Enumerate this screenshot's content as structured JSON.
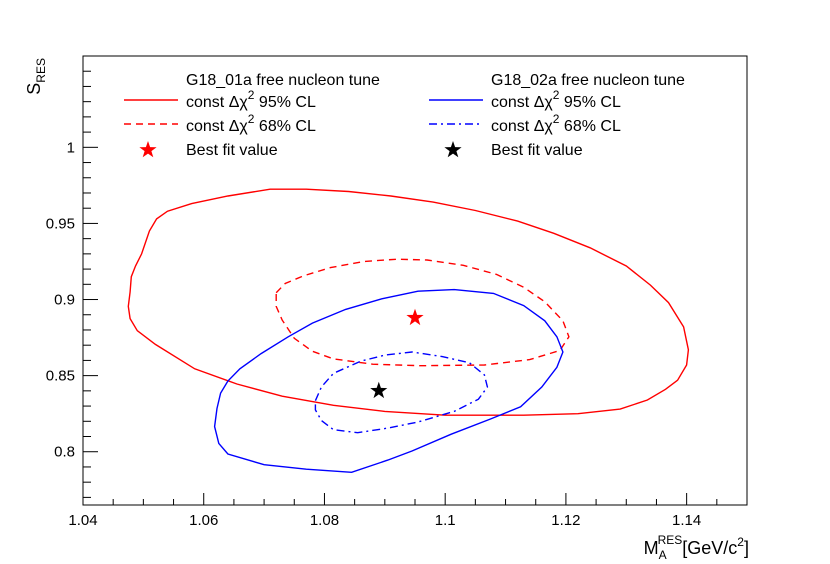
{
  "chart_data": {
    "type": "contour",
    "xlabel": {
      "main": "M",
      "sub": "A",
      "sup": "RES",
      "unit_pre": "[GeV/c",
      "unit_sup": "2",
      "unit_post": "]"
    },
    "ylabel": {
      "main": "S",
      "sub": "RES"
    },
    "xlim": [
      1.04,
      1.15
    ],
    "ylim": [
      0.765,
      1.06
    ],
    "x_ticks": [
      1.04,
      1.06,
      1.08,
      1.1,
      1.12,
      1.14
    ],
    "x_tick_labels": [
      "1.04",
      "1.06",
      "1.08",
      "1.1",
      "1.12",
      "1.14"
    ],
    "y_ticks": [
      0.8,
      0.85,
      0.9,
      0.95,
      1.0
    ],
    "y_tick_labels": [
      "0.8",
      "0.85",
      "0.9",
      "0.95",
      "1"
    ],
    "x_minor_step": 0.005,
    "y_minor_step": 0.01,
    "grid": false,
    "legend": {
      "placement": "top",
      "columns": [
        {
          "header": "G18_01a free nucleon tune",
          "entries": [
            {
              "kind": "solid",
              "color": "#ff0000",
              "pre": "const Δχ",
              "sup": "2",
              "post": " 95% CL"
            },
            {
              "kind": "dashed",
              "color": "#ff0000",
              "pre": "const Δχ",
              "sup": "2",
              "post": " 68% CL"
            },
            {
              "kind": "star",
              "color": "#ff0000",
              "pre": "Best fit value",
              "sup": "",
              "post": ""
            }
          ]
        },
        {
          "header": "G18_02a free nucleon tune",
          "entries": [
            {
              "kind": "solid",
              "color": "#0000ff",
              "pre": "const Δχ",
              "sup": "2",
              "post": " 95% CL"
            },
            {
              "kind": "dashdot",
              "color": "#0000ff",
              "pre": "const Δχ",
              "sup": "2",
              "post": " 68% CL"
            },
            {
              "kind": "star",
              "color": "#000000",
              "pre": "Best fit value",
              "sup": "",
              "post": ""
            }
          ]
        }
      ]
    },
    "series": [
      {
        "name": "G18_01a const Δχ2 95% CL",
        "color": "#ff0000",
        "style": "solid",
        "points": [
          [
            1.0475,
            0.8955
          ],
          [
            1.0478,
            0.905
          ],
          [
            1.048,
            0.915
          ],
          [
            1.0487,
            0.922
          ],
          [
            1.0497,
            0.93
          ],
          [
            1.051,
            0.945
          ],
          [
            1.0522,
            0.953
          ],
          [
            1.054,
            0.958
          ],
          [
            1.058,
            0.963
          ],
          [
            1.064,
            0.968
          ],
          [
            1.071,
            0.9725
          ],
          [
            1.077,
            0.9725
          ],
          [
            1.084,
            0.971
          ],
          [
            1.091,
            0.968
          ],
          [
            1.098,
            0.964
          ],
          [
            1.105,
            0.9585
          ],
          [
            1.112,
            0.9515
          ],
          [
            1.118,
            0.9435
          ],
          [
            1.124,
            0.934
          ],
          [
            1.13,
            0.922
          ],
          [
            1.134,
            0.9095
          ],
          [
            1.137,
            0.898
          ],
          [
            1.1395,
            0.882
          ],
          [
            1.1403,
            0.867
          ],
          [
            1.14,
            0.857
          ],
          [
            1.1385,
            0.847
          ],
          [
            1.1365,
            0.841
          ],
          [
            1.1335,
            0.834
          ],
          [
            1.129,
            0.828
          ],
          [
            1.122,
            0.825
          ],
          [
            1.113,
            0.824
          ],
          [
            1.1,
            0.824
          ],
          [
            1.09,
            0.8265
          ],
          [
            1.0815,
            0.8305
          ],
          [
            1.073,
            0.8365
          ],
          [
            1.0655,
            0.8445
          ],
          [
            1.0585,
            0.8545
          ],
          [
            1.052,
            0.8705
          ],
          [
            1.049,
            0.8795
          ],
          [
            1.0478,
            0.8875
          ],
          [
            1.0475,
            0.8955
          ]
        ]
      },
      {
        "name": "G18_01a const Δχ2 68% CL",
        "color": "#ff0000",
        "style": "dashed",
        "points": [
          [
            1.072,
            0.9045
          ],
          [
            1.0735,
            0.9105
          ],
          [
            1.0765,
            0.9155
          ],
          [
            1.081,
            0.921
          ],
          [
            1.0865,
            0.925
          ],
          [
            1.092,
            0.9265
          ],
          [
            1.097,
            0.926
          ],
          [
            1.103,
            0.9225
          ],
          [
            1.1085,
            0.9165
          ],
          [
            1.113,
            0.908
          ],
          [
            1.1165,
            0.8985
          ],
          [
            1.1195,
            0.886
          ],
          [
            1.1205,
            0.8755
          ],
          [
            1.119,
            0.8665
          ],
          [
            1.114,
            0.8605
          ],
          [
            1.1065,
            0.857
          ],
          [
            1.096,
            0.8565
          ],
          [
            1.088,
            0.8575
          ],
          [
            1.0815,
            0.861
          ],
          [
            1.078,
            0.866
          ],
          [
            1.075,
            0.8745
          ],
          [
            1.073,
            0.8865
          ],
          [
            1.072,
            0.8955
          ],
          [
            1.072,
            0.9045
          ]
        ]
      },
      {
        "name": "G18_02a const Δχ2 95% CL",
        "color": "#0000ff",
        "style": "solid",
        "points": [
          [
            1.0622,
            0.8285
          ],
          [
            1.0628,
            0.8385
          ],
          [
            1.064,
            0.8465
          ],
          [
            1.066,
            0.8545
          ],
          [
            1.0695,
            0.8645
          ],
          [
            1.074,
            0.8755
          ],
          [
            1.078,
            0.8845
          ],
          [
            1.0835,
            0.8935
          ],
          [
            1.0895,
            0.9005
          ],
          [
            1.0955,
            0.9055
          ],
          [
            1.1015,
            0.9065
          ],
          [
            1.108,
            0.904
          ],
          [
            1.113,
            0.896
          ],
          [
            1.1165,
            0.886
          ],
          [
            1.1185,
            0.8755
          ],
          [
            1.1195,
            0.8655
          ],
          [
            1.1185,
            0.8555
          ],
          [
            1.116,
            0.8425
          ],
          [
            1.1125,
            0.8295
          ],
          [
            1.1075,
            0.8215
          ],
          [
            1.101,
            0.8115
          ],
          [
            1.0945,
            0.8005
          ],
          [
            1.0905,
            0.7945
          ],
          [
            1.0845,
            0.7865
          ],
          [
            1.077,
            0.7885
          ],
          [
            1.07,
            0.7915
          ],
          [
            1.064,
            0.7985
          ],
          [
            1.0625,
            0.8055
          ],
          [
            1.0618,
            0.8165
          ],
          [
            1.0622,
            0.8285
          ]
        ]
      },
      {
        "name": "G18_02a const Δχ2 68% CL",
        "color": "#0000ff",
        "style": "dashdot",
        "points": [
          [
            1.0785,
            0.8335
          ],
          [
            1.0795,
            0.8425
          ],
          [
            1.0815,
            0.8515
          ],
          [
            1.086,
            0.8595
          ],
          [
            1.09,
            0.8635
          ],
          [
            1.0945,
            0.8655
          ],
          [
            1.0995,
            0.8625
          ],
          [
            1.104,
            0.8585
          ],
          [
            1.1065,
            0.8505
          ],
          [
            1.107,
            0.8425
          ],
          [
            1.1055,
            0.8345
          ],
          [
            1.1015,
            0.8265
          ],
          [
            1.0955,
            0.8195
          ],
          [
            1.0905,
            0.8155
          ],
          [
            1.0855,
            0.8125
          ],
          [
            1.0815,
            0.8145
          ],
          [
            1.0795,
            0.8205
          ],
          [
            1.0785,
            0.8275
          ],
          [
            1.0785,
            0.8335
          ]
        ]
      }
    ],
    "best_fit": [
      {
        "name": "G18_01a best fit",
        "x": 1.095,
        "y": 0.888,
        "color": "#ff0000"
      },
      {
        "name": "G18_02a best fit",
        "x": 1.089,
        "y": 0.84,
        "color": "#000000"
      }
    ]
  }
}
